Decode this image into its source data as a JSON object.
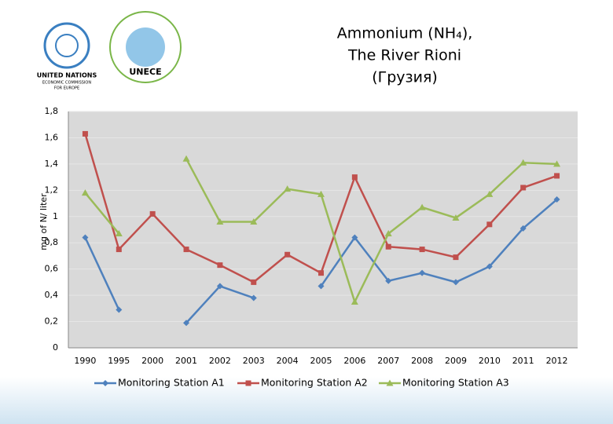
{
  "header": {
    "logo_lines": [
      "UNITED NATIONS",
      "ECONOMIC COMMISSION",
      "FOR EUROPE"
    ],
    "badge": "UNECE"
  },
  "chart_data": {
    "type": "line",
    "title": [
      "Ammonium (NH₄),",
      "The River Rioni",
      "(Грузия)"
    ],
    "y_label": "mg of N/ liter",
    "categories": [
      "1990",
      "1995",
      "2000",
      "2001",
      "2002",
      "2003",
      "2004",
      "2005",
      "2006",
      "2007",
      "2008",
      "2009",
      "2010",
      "2011",
      "2012"
    ],
    "series": [
      {
        "name": "Monitoring Station A1",
        "color": "#4f81bd",
        "marker": "diamond",
        "values": [
          0.84,
          0.29,
          null,
          0.19,
          0.47,
          0.38,
          null,
          0.47,
          0.84,
          0.51,
          0.57,
          0.5,
          0.62,
          0.91,
          1.13
        ]
      },
      {
        "name": "Monitoring Station A2",
        "color": "#c0504d",
        "marker": "square",
        "values": [
          1.63,
          0.75,
          1.02,
          0.75,
          0.63,
          0.5,
          0.71,
          0.57,
          1.3,
          0.77,
          0.75,
          0.69,
          0.94,
          1.22,
          1.31
        ]
      },
      {
        "name": "Monitoring Station A3",
        "color": "#9bbb59",
        "marker": "triangle",
        "values": [
          1.18,
          0.87,
          null,
          1.44,
          0.96,
          0.96,
          1.21,
          1.17,
          0.35,
          0.87,
          1.07,
          0.99,
          1.17,
          1.41,
          1.4
        ]
      }
    ],
    "ylim": [
      0,
      1.8
    ],
    "yticks": [
      0,
      {
        "value": 0.2,
        "label": "0,2"
      },
      {
        "value": 0.4,
        "label": "0,4"
      },
      {
        "value": 0.6,
        "label": "0,6"
      },
      {
        "value": 0.8,
        "label": "0,8"
      },
      1,
      {
        "value": 1.2,
        "label": "1,2"
      },
      {
        "value": 1.4,
        "label": "1,4"
      },
      {
        "value": 1.6,
        "label": "1,6"
      },
      {
        "value": 1.8,
        "label": "1,8"
      }
    ],
    "grid": true,
    "plot_background": "#d9d9d9",
    "legend": "bottom"
  }
}
